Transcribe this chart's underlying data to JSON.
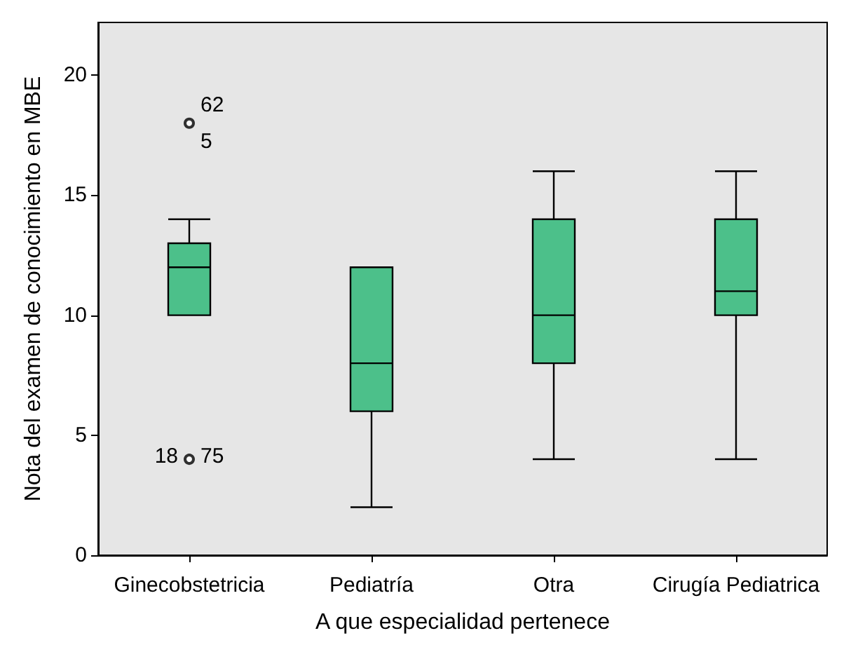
{
  "chart_data": {
    "type": "box",
    "xlabel": "A que especialidad pertenece",
    "ylabel": "Nota del examen de conocimiento en MBE",
    "categories": [
      "Ginecobstetricia",
      "Pediatría",
      "Otra",
      "Cirugía Pediatrica"
    ],
    "color": "#4cc08a",
    "boxes": [
      {
        "low": 10,
        "q1": 10,
        "median": 12,
        "q3": 13,
        "high": 14,
        "outliers": [
          18,
          4
        ]
      },
      {
        "low": 2,
        "q1": 6,
        "median": 8,
        "q3": 12,
        "high": 12
      },
      {
        "low": 4,
        "q1": 8,
        "median": 10,
        "q3": 14,
        "high": 16
      },
      {
        "low": 4,
        "q1": 10,
        "median": 11,
        "q3": 14,
        "high": 16
      }
    ],
    "annotations": [
      "62",
      "5",
      "18",
      "75"
    ],
    "ylim": [
      0,
      22.2
    ],
    "yticks": [
      0,
      5,
      10,
      15,
      20
    ],
    "grid": false
  }
}
